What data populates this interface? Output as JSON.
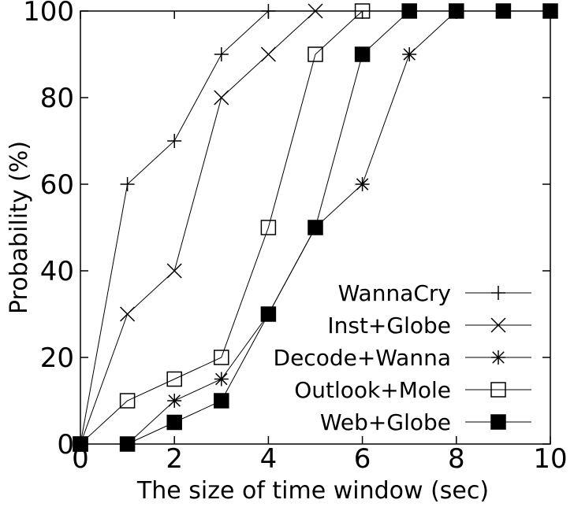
{
  "chart_data": {
    "type": "line",
    "title": "",
    "xlabel": "The size of time window (sec)",
    "ylabel": "Probability (%)",
    "xlim": [
      0,
      10
    ],
    "ylim": [
      0,
      100
    ],
    "x_ticks": [
      "0",
      "2",
      "4",
      "6",
      "8",
      "10"
    ],
    "y_ticks": [
      "0",
      "20",
      "40",
      "60",
      "80",
      "100"
    ],
    "grid": false,
    "legend_position": "bottom-right",
    "series": [
      {
        "name": "WannaCry",
        "marker": "plus",
        "x": [
          0,
          1,
          2,
          3,
          4
        ],
        "y": [
          0,
          60,
          70,
          90,
          100
        ]
      },
      {
        "name": "Inst+Globe",
        "marker": "cross",
        "x": [
          0,
          1,
          2,
          3,
          4,
          5
        ],
        "y": [
          0,
          30,
          40,
          80,
          90,
          100
        ]
      },
      {
        "name": "Decode+Wanna",
        "marker": "asterisk",
        "x": [
          0,
          1,
          2,
          3,
          4,
          5,
          6,
          7,
          8,
          9,
          10
        ],
        "y": [
          0,
          0,
          10,
          15,
          30,
          50,
          60,
          90,
          100,
          100,
          100
        ]
      },
      {
        "name": "Outlook+Mole",
        "marker": "open-square",
        "x": [
          0,
          1,
          2,
          3,
          4,
          5,
          6
        ],
        "y": [
          0,
          10,
          15,
          20,
          50,
          90,
          100
        ]
      },
      {
        "name": "Web+Globe",
        "marker": "filled-square",
        "x": [
          0,
          1,
          2,
          3,
          4,
          5,
          6,
          7,
          8,
          9,
          10
        ],
        "y": [
          0,
          0,
          5,
          10,
          30,
          50,
          90,
          100,
          100,
          100,
          100
        ]
      }
    ]
  }
}
